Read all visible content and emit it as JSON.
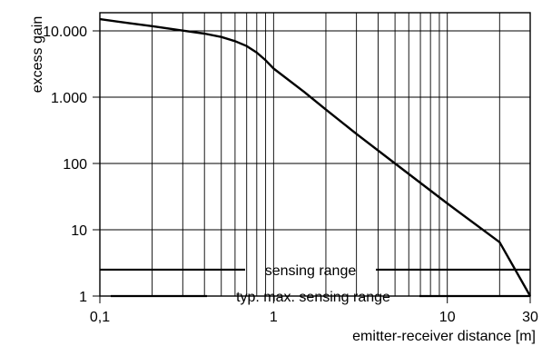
{
  "chart_data": {
    "type": "line",
    "title": "",
    "xlabel": "emitter-receiver distance [m]",
    "ylabel": "excess gain",
    "x_scale": "log",
    "y_scale": "log",
    "xlim": [
      0.1,
      30
    ],
    "ylim": [
      1,
      20000
    ],
    "grid": true,
    "x_ticks": [
      {
        "value": 0.1,
        "label": "0,1"
      },
      {
        "value": 1,
        "label": "1"
      },
      {
        "value": 10,
        "label": "10"
      },
      {
        "value": 30,
        "label": "30"
      }
    ],
    "y_ticks": [
      {
        "value": 1,
        "label": "1"
      },
      {
        "value": 10,
        "label": "10"
      },
      {
        "value": 100,
        "label": "100"
      },
      {
        "value": 1000,
        "label": "1.000"
      },
      {
        "value": 10000,
        "label": "10.000"
      }
    ],
    "series": [
      {
        "x": [
          0.1,
          0.15,
          0.2,
          0.3,
          0.4,
          0.5,
          0.6,
          0.7,
          0.8,
          0.9,
          1,
          1.5,
          2,
          3,
          5,
          10,
          20,
          30
        ],
        "y": [
          15000,
          13000,
          11800,
          10100,
          9100,
          8100,
          7000,
          5900,
          4700,
          3600,
          2700,
          1200,
          650,
          280,
          100,
          25,
          6.5,
          1
        ]
      }
    ],
    "reference_lines": [
      {
        "label": "sensing range",
        "y": 2.5
      },
      {
        "label": "typ. max. sensing range",
        "y": 1
      }
    ]
  }
}
